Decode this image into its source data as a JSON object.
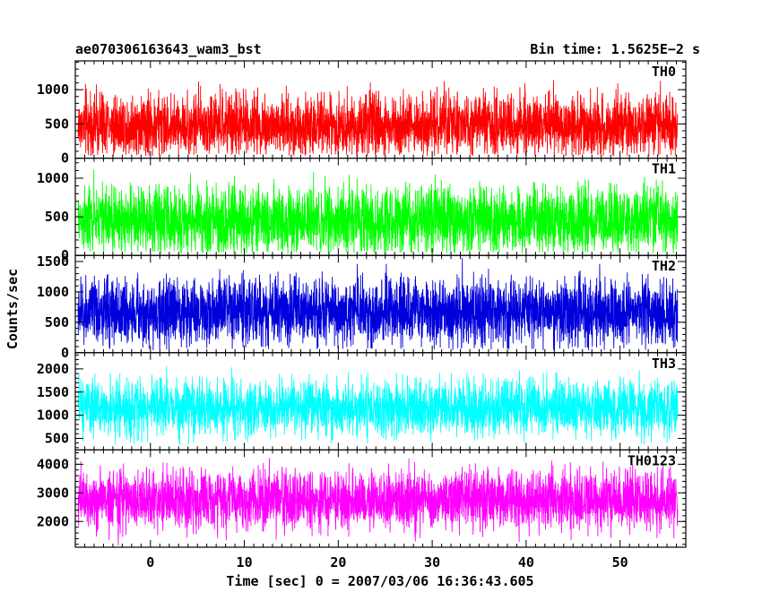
{
  "header": {
    "title": "ae070306163643_wam3_bst",
    "bin_time": "Bin time: 1.5625E−2 s"
  },
  "chart_data": {
    "type": "line",
    "xlabel": "Time [sec] 0 = 2007/03/06 16:36:43.605",
    "ylabel": "Counts/sec",
    "xlim": [
      -8,
      57
    ],
    "x_ticks": [
      0,
      10,
      20,
      30,
      40,
      50
    ],
    "bin_time_s": 0.015625,
    "x_range_data": [
      -7.7,
      56.1
    ],
    "panels": [
      {
        "name": "TH0",
        "color": "#ff0000",
        "ylim": [
          0,
          1420
        ],
        "y_ticks": [
          0,
          500,
          1000
        ],
        "baseline": 480,
        "spread": 230,
        "peak_max": 1400,
        "min_value": 30
      },
      {
        "name": "TH1",
        "color": "#00ff00",
        "ylim": [
          0,
          1260
        ],
        "y_ticks": [
          0,
          500,
          1000
        ],
        "baseline": 450,
        "spread": 215,
        "peak_max": 1250,
        "min_value": 25
      },
      {
        "name": "TH2",
        "color": "#0000dd",
        "ylim": [
          0,
          1600
        ],
        "y_ticks": [
          0,
          500,
          1000,
          1500
        ],
        "baseline": 670,
        "spread": 280,
        "peak_max": 1600,
        "min_value": 40
      },
      {
        "name": "TH3",
        "color": "#00ffff",
        "ylim": [
          250,
          2350
        ],
        "y_ticks": [
          500,
          1000,
          1500,
          2000
        ],
        "baseline": 1150,
        "spread": 300,
        "peak_max": 2350,
        "min_value": 330
      },
      {
        "name": "TH0123",
        "color": "#ff00ff",
        "ylim": [
          1100,
          4500
        ],
        "y_ticks": [
          2000,
          3000,
          4000
        ],
        "baseline": 2750,
        "spread": 520,
        "peak_max": 4500,
        "min_value": 1150
      }
    ]
  }
}
